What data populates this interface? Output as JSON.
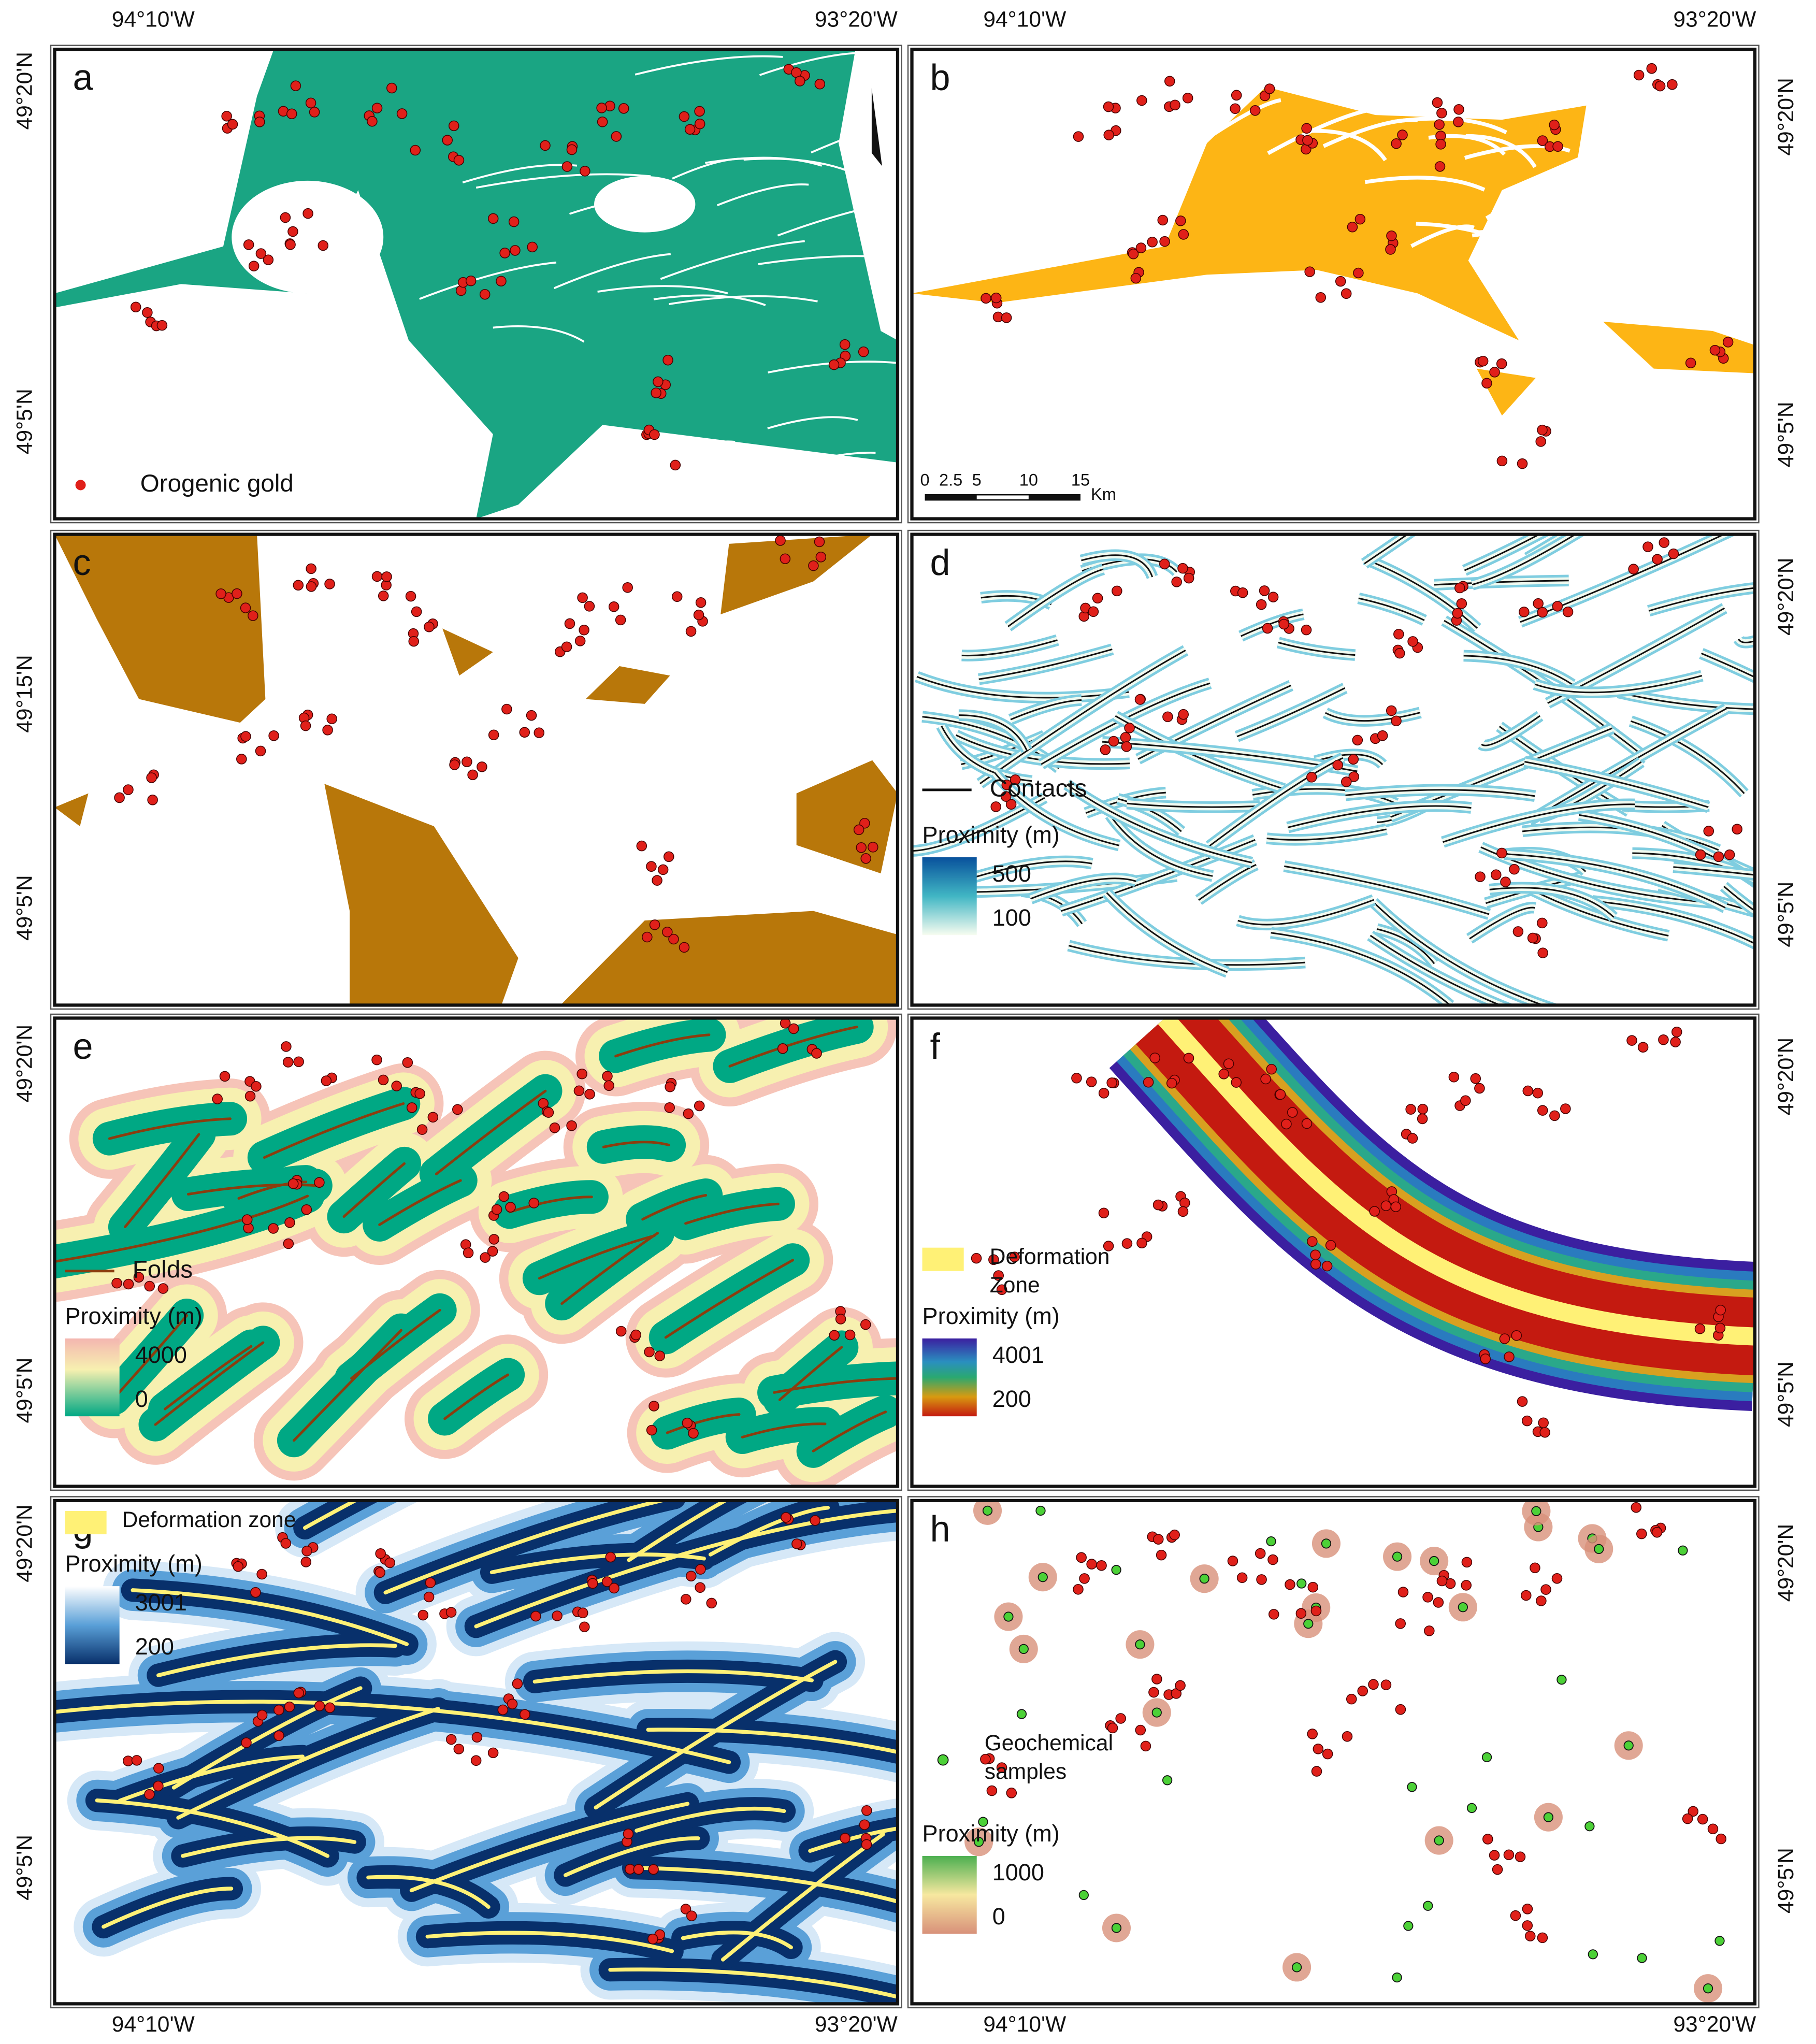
{
  "axis_labels": {
    "top": [
      "94°10'W",
      "93°20'W",
      "94°10'W",
      "93°20'W"
    ],
    "bottom": [
      "94°10'W",
      "93°20'W",
      "94°10'W",
      "93°20'W"
    ],
    "left": [
      "49°20'N",
      "49°5'N",
      "49°15'N",
      "49°5'N",
      "49°20'N",
      "49°5'N",
      "49°20'N",
      "49°5'N"
    ],
    "right": [
      "49°20'N",
      "49°5'N",
      "49°20'N",
      "49°5'N",
      "49°20'N",
      "49°5'N",
      "49°20'N",
      "49°5'N"
    ]
  },
  "panels": [
    {
      "label": "a",
      "point_legend": [
        "Orogenic gold"
      ]
    },
    {
      "label": "b",
      "scale_bar": {
        "ticks": [
          "0",
          "2.5",
          "5",
          "10",
          "15"
        ],
        "unit": "Km"
      }
    },
    {
      "label": "c"
    },
    {
      "label": "d",
      "line_legend": "Contacts",
      "proximity": {
        "title": "Proximity (m)",
        "max": "500",
        "min": "100"
      }
    },
    {
      "label": "e",
      "line_legend": "Folds",
      "proximity": {
        "title": "Proximity (m)",
        "max": "4000",
        "min": "0"
      }
    },
    {
      "label": "f",
      "zone_legend": [
        "Deformation",
        "Zone"
      ],
      "proximity": {
        "title": "Proximity (m)",
        "max": "4001",
        "min": "200"
      }
    },
    {
      "label": "g",
      "zone_legend": [
        "Deformation zone"
      ],
      "proximity": {
        "title": "Proximity (m)",
        "max": "3001",
        "min": "200"
      }
    },
    {
      "label": "h",
      "point_legend": [
        "Geochemical",
        "samples"
      ],
      "proximity": {
        "title": "Proximity (m)",
        "max": "1000",
        "min": "0"
      }
    }
  ]
}
